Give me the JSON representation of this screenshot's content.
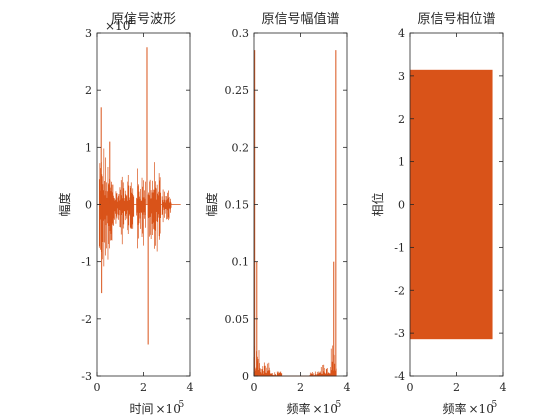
{
  "colors": {
    "trace": "#d95319",
    "axis": "#262626",
    "background": "#ffffff"
  },
  "chart_data": [
    {
      "type": "line",
      "title": "原信号波形",
      "xlabel": "时间",
      "ylabel": "幅度",
      "x_multiplier": "×10",
      "x_multiplier_exp": "5",
      "y_multiplier": "×10",
      "y_multiplier_exp": "4",
      "xlim": [
        0,
        4
      ],
      "ylim": [
        -3,
        3
      ],
      "xticks": [
        "0",
        "2",
        "4"
      ],
      "yticks": [
        "-3",
        "-2",
        "-1",
        "0",
        "1",
        "2",
        "3"
      ],
      "grid": false,
      "signal_extent": [
        0,
        3.6
      ],
      "bursts": [
        {
          "x": [
            0.1,
            0.3
          ],
          "amp": 1.3
        },
        {
          "x": [
            0.3,
            0.75
          ],
          "amp": 1.0
        },
        {
          "x": [
            0.75,
            1.0
          ],
          "amp": 0.45
        },
        {
          "x": [
            1.0,
            1.6
          ],
          "amp": 0.7
        },
        {
          "x": [
            1.7,
            2.1
          ],
          "amp": 0.8
        },
        {
          "x": [
            2.2,
            2.75
          ],
          "amp": 0.85
        },
        {
          "x": [
            2.8,
            3.2
          ],
          "amp": 0.35
        }
      ],
      "peaks": [
        {
          "x": 0.18,
          "y": 1.7
        },
        {
          "x": 0.2,
          "y": -1.55
        },
        {
          "x": 0.55,
          "y": 1.1
        },
        {
          "x": 2.15,
          "y": 2.75
        },
        {
          "x": 2.2,
          "y": -2.45
        }
      ]
    },
    {
      "type": "line",
      "title": "原信号幅值谱",
      "xlabel": "频率",
      "ylabel": "幅度",
      "x_multiplier": "×10",
      "x_multiplier_exp": "5",
      "xlim": [
        0,
        4
      ],
      "ylim": [
        0,
        0.3
      ],
      "xticks": [
        "0",
        "2",
        "4"
      ],
      "yticks": [
        "0",
        "0.05",
        "0.1",
        "0.15",
        "0.2",
        "0.25",
        "0.3"
      ],
      "grid": false,
      "signal_extent": [
        0,
        3.55
      ],
      "bands": [
        {
          "x": [
            0.0,
            0.25
          ],
          "amp": 0.03
        },
        {
          "x": [
            0.25,
            0.7
          ],
          "amp": 0.012
        },
        {
          "x": [
            0.7,
            1.2
          ],
          "amp": 0.004
        },
        {
          "x": [
            2.4,
            2.85
          ],
          "amp": 0.004
        },
        {
          "x": [
            2.85,
            3.3
          ],
          "amp": 0.012
        },
        {
          "x": [
            3.3,
            3.55
          ],
          "amp": 0.03
        }
      ],
      "peaks": [
        {
          "x": 0.03,
          "y": 0.285
        },
        {
          "x": 0.12,
          "y": 0.1
        },
        {
          "x": 3.43,
          "y": 0.1
        },
        {
          "x": 3.52,
          "y": 0.285
        }
      ]
    },
    {
      "type": "area",
      "title": "原信号相位谱",
      "xlabel": "频率",
      "ylabel": "相位",
      "x_multiplier": "×10",
      "x_multiplier_exp": "5",
      "xlim": [
        0,
        4
      ],
      "ylim": [
        -4,
        4
      ],
      "xticks": [
        "0",
        "2",
        "4"
      ],
      "yticks": [
        "-4",
        "-3",
        "-2",
        "-1",
        "0",
        "1",
        "2",
        "3",
        "4"
      ],
      "grid": false,
      "phase_range": [
        -3.1416,
        3.1416
      ],
      "signal_extent": [
        0,
        3.55
      ]
    }
  ]
}
